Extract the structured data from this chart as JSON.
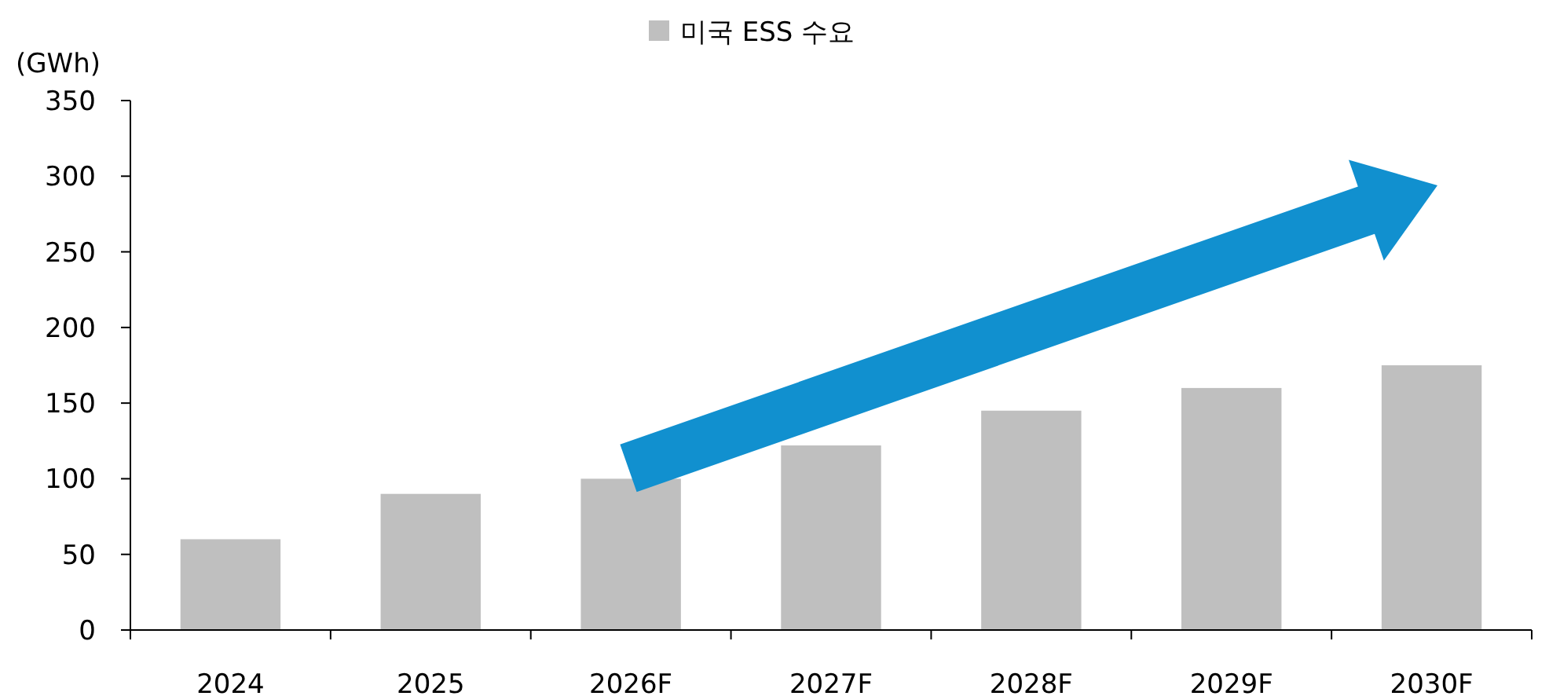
{
  "chart_data": {
    "type": "bar",
    "ylabel": "(GWh)",
    "categories": [
      "2024",
      "2025",
      "2026F",
      "2027F",
      "2028F",
      "2029F",
      "2030F"
    ],
    "series": [
      {
        "name": "미국 ESS 수요",
        "color": "#bfbfbf",
        "values": [
          60,
          90,
          100,
          122,
          145,
          160,
          175
        ]
      }
    ],
    "ylim": [
      0,
      350
    ],
    "yticks": [
      0,
      50,
      100,
      150,
      200,
      250,
      300,
      350
    ],
    "legend": "top",
    "grid": false
  }
}
